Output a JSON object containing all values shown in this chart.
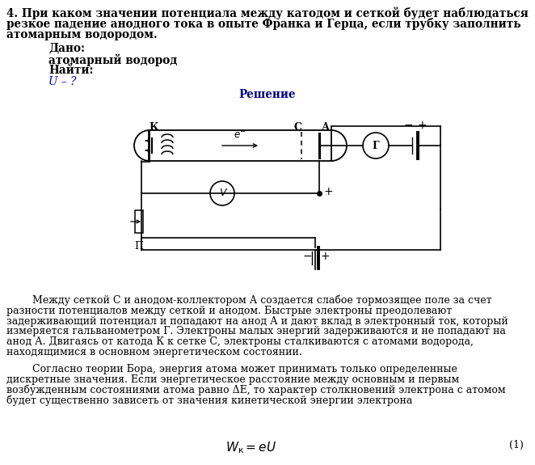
{
  "title_line1": "4. При каком значении потенциала между катодом и сеткой будет наблюдаться",
  "title_line2": "резкое падение анодного тока в опыте Франка и Герца, если трубку заполнить",
  "title_line3": "атомарным водородом.",
  "dado_label": "Дано:",
  "dado_value": "атомарный водород",
  "nayti_label": "Найти:",
  "nayti_value": "U – ?",
  "reshenie_label": "Решение",
  "label_K": "К",
  "label_C": "С",
  "label_A": "А",
  "label_G": "Г",
  "label_V": "V",
  "label_P": "П",
  "label_eminus": "e⁻",
  "label_plus1": "+",
  "label_minus1": "−",
  "label_plus2": "+",
  "label_minus2": "−",
  "label_plus3": "+",
  "para1_indent": "        Между сеткой С и анодом-коллектором А создается слабое тормозящее поле за счет",
  "para1_l2": "разности потенциалов между сеткой и анодом. Быстрые электроны преодолевают",
  "para1_l3": "задерживающий потенциал и попадают на анод А и дают вклад в электронный ток, который",
  "para1_l4": "измеряется гальванометром Г. Электроны малых энергий задерживаются и не попадают на",
  "para1_l5": "анод А. Двигаясь от катода К к сетке С, электроны сталкиваются с атомами водорода,",
  "para1_l6": "находящимися в основном энергетическом состоянии.",
  "para2_indent": "        Согласно теории Бора, энергия атома может принимать только определенные",
  "para2_l2": "дискретные значения. Если энергетическое расстояние между основным и первым",
  "para2_l3": "возбужденным состояниями атома равно ΔЕ, то характер столкновений электрона с атомом",
  "para2_l4": "будет существенно зависеть от значения кинетической энергии электрона",
  "formula_label": "W_к = eU",
  "formula_num": "(1)",
  "bg_color": "#ffffff",
  "text_color": "#000000",
  "blue_color": "#0000cc",
  "reshenie_color": "#000080"
}
